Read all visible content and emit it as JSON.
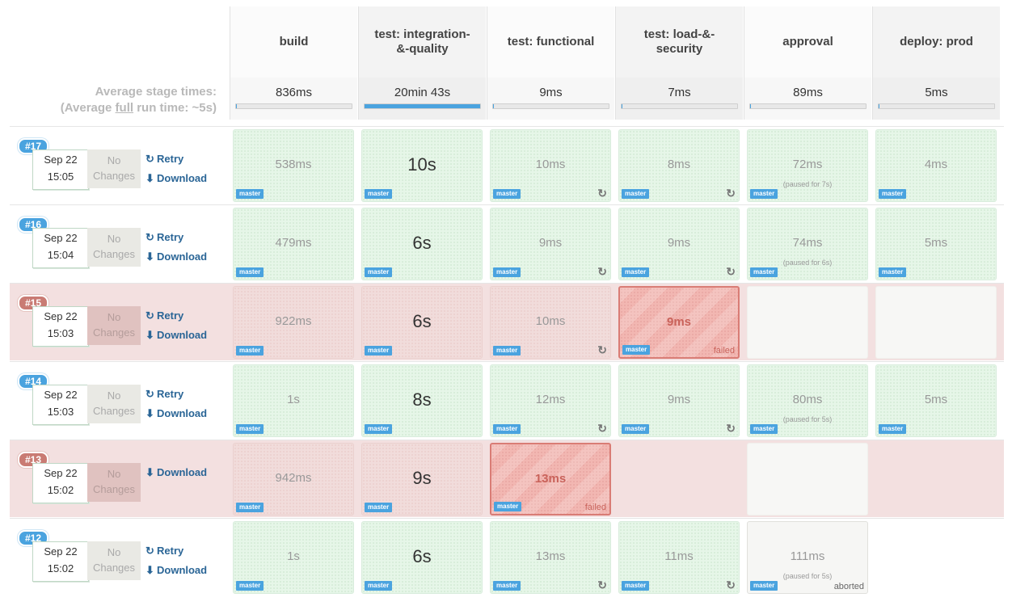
{
  "stages": [
    {
      "name": "build"
    },
    {
      "name": "test: integration-&-quality"
    },
    {
      "name": "test: functional"
    },
    {
      "name": "test: load-&-security"
    },
    {
      "name": "approval"
    },
    {
      "name": "deploy: prod"
    }
  ],
  "average": {
    "title_line1": "Average stage times:",
    "title_prefix": "(Average ",
    "title_full": "full",
    "title_suffix": " run time: ~5s)",
    "times": [
      "836ms",
      "20min 43s",
      "9ms",
      "7ms",
      "89ms",
      "5ms"
    ],
    "fill_fraction": [
      0.01,
      1.0,
      0.01,
      0.01,
      0.01,
      0.01
    ]
  },
  "labels": {
    "no_changes": "No Changes",
    "retry": "Retry",
    "download": "Download",
    "branch": "master",
    "failed": "failed",
    "aborted": "aborted"
  },
  "icons": {
    "retry": "refresh-icon",
    "download": "download-icon",
    "rerun": "rerun-icon"
  },
  "colors": {
    "success": "#e6f6e8",
    "failed": "#f2b7b2",
    "unstable": "#f1dcdb",
    "badge": "#4aa3df",
    "badge_failed": "#c97b73",
    "link": "#2a6596"
  },
  "builds": [
    {
      "number": "#17",
      "date": "Sep 22",
      "time": "15:05",
      "status": "success",
      "retry": true,
      "stages": [
        {
          "status": "success",
          "duration": "538ms"
        },
        {
          "status": "success",
          "duration": "10s",
          "big": true
        },
        {
          "status": "success",
          "duration": "10ms",
          "rerun": true
        },
        {
          "status": "success",
          "duration": "8ms",
          "rerun": true
        },
        {
          "status": "success",
          "duration": "72ms",
          "paused": "(paused for 7s)"
        },
        {
          "status": "success",
          "duration": "4ms"
        }
      ]
    },
    {
      "number": "#16",
      "date": "Sep 22",
      "time": "15:04",
      "status": "success",
      "retry": true,
      "stages": [
        {
          "status": "success",
          "duration": "479ms"
        },
        {
          "status": "success",
          "duration": "6s",
          "big": true
        },
        {
          "status": "success",
          "duration": "9ms",
          "rerun": true
        },
        {
          "status": "success",
          "duration": "9ms",
          "rerun": true
        },
        {
          "status": "success",
          "duration": "74ms",
          "paused": "(paused for 6s)"
        },
        {
          "status": "success",
          "duration": "5ms"
        }
      ]
    },
    {
      "number": "#15",
      "date": "Sep 22",
      "time": "15:03",
      "status": "failed",
      "retry": true,
      "stages": [
        {
          "status": "unstable",
          "duration": "922ms"
        },
        {
          "status": "unstable",
          "duration": "6s",
          "big": true
        },
        {
          "status": "unstable",
          "duration": "10ms",
          "rerun": true
        },
        {
          "status": "failed",
          "duration": "9ms",
          "label": "failed"
        },
        {
          "status": "empty"
        },
        {
          "status": "empty"
        }
      ]
    },
    {
      "number": "#14",
      "date": "Sep 22",
      "time": "15:03",
      "status": "success",
      "retry": true,
      "stages": [
        {
          "status": "success",
          "duration": "1s"
        },
        {
          "status": "success",
          "duration": "8s",
          "big": true
        },
        {
          "status": "success",
          "duration": "12ms",
          "rerun": true
        },
        {
          "status": "success",
          "duration": "9ms",
          "rerun": true
        },
        {
          "status": "success",
          "duration": "80ms",
          "paused": "(paused for 5s)"
        },
        {
          "status": "success",
          "duration": "5ms"
        }
      ]
    },
    {
      "number": "#13",
      "date": "Sep 22",
      "time": "15:02",
      "status": "failed",
      "retry": false,
      "stages": [
        {
          "status": "unstable",
          "duration": "942ms"
        },
        {
          "status": "unstable",
          "duration": "9s",
          "big": true
        },
        {
          "status": "failed",
          "duration": "13ms",
          "label": "failed"
        },
        {
          "status": "none"
        },
        {
          "status": "empty"
        },
        {
          "status": "none"
        }
      ]
    },
    {
      "number": "#12",
      "date": "Sep 22",
      "time": "15:02",
      "status": "success",
      "retry": true,
      "stages": [
        {
          "status": "success",
          "duration": "1s"
        },
        {
          "status": "success",
          "duration": "6s",
          "big": true
        },
        {
          "status": "success",
          "duration": "13ms",
          "rerun": true
        },
        {
          "status": "success",
          "duration": "11ms",
          "rerun": true
        },
        {
          "status": "aborted",
          "duration": "111ms",
          "paused": "(paused for 5s)",
          "label": "aborted"
        },
        {
          "status": "none"
        }
      ]
    }
  ]
}
